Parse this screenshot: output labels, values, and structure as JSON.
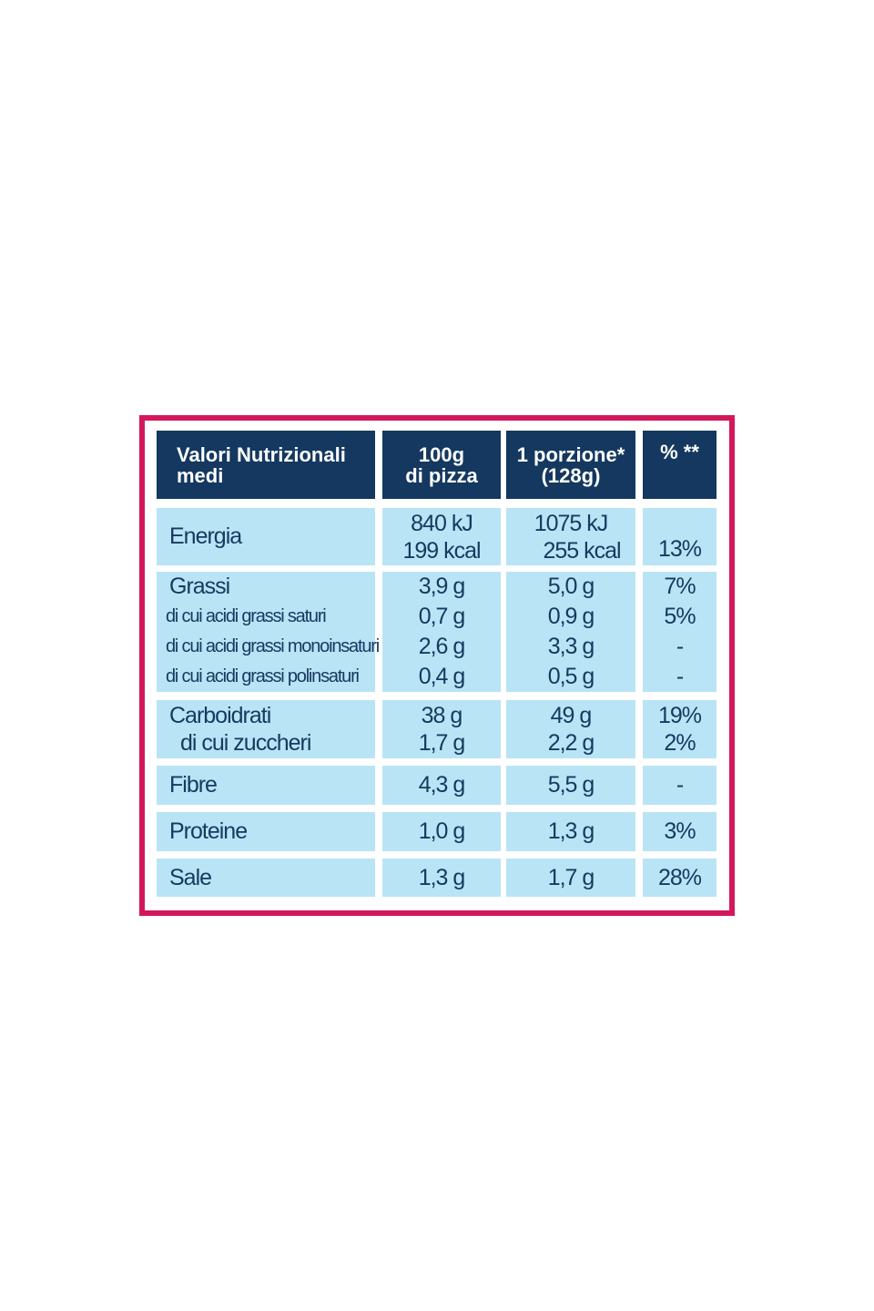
{
  "table": {
    "header": [
      [
        "Valori Nutrizionali",
        "medi"
      ],
      [
        "100g",
        "di pizza"
      ],
      [
        "1 porzione*",
        "(128g)"
      ],
      [
        "% **"
      ]
    ],
    "rows": [
      [
        [
          "Energia"
        ],
        [
          "840 kJ",
          "199 kcal"
        ],
        [
          "1075 kJ",
          "255 kcal"
        ],
        [
          "13%"
        ]
      ],
      [
        [
          "Grassi",
          "di cui acidi grassi saturi",
          "di cui acidi grassi monoinsaturi",
          "di cui acidi grassi polinsaturi"
        ],
        [
          "3,9 g",
          "0,7 g",
          "2,6 g",
          "0,4 g"
        ],
        [
          "5,0 g",
          "0,9 g",
          "3,3 g",
          "0,5 g"
        ],
        [
          "7%",
          "5%",
          "-",
          "-"
        ]
      ],
      [
        [
          "Carboidrati",
          "di cui zuccheri"
        ],
        [
          "38 g",
          "1,7 g"
        ],
        [
          "49 g",
          "2,2 g"
        ],
        [
          "19%",
          "2%"
        ]
      ],
      [
        [
          "Fibre"
        ],
        [
          "4,3 g"
        ],
        [
          "5,5 g"
        ],
        [
          "-"
        ]
      ],
      [
        [
          "Proteine"
        ],
        [
          "1,0 g"
        ],
        [
          "1,3 g"
        ],
        [
          "3%"
        ]
      ],
      [
        [
          "Sale"
        ],
        [
          "1,3 g"
        ],
        [
          "1,7 g"
        ],
        [
          "28%"
        ]
      ]
    ]
  }
}
